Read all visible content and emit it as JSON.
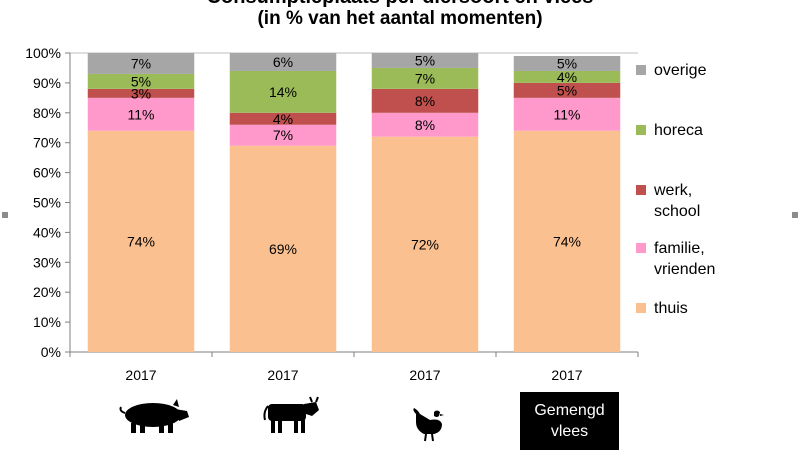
{
  "title_line1": "Consumptieplaats per diersoort en vlees",
  "title_line2": "(in % van het aantal momenten)",
  "mixed_label_line1": "Gemengd",
  "mixed_label_line2": "vlees",
  "icons": [
    "pig-icon",
    "cow-icon",
    "chicken-icon"
  ],
  "chart_data": {
    "type": "bar",
    "stacked": true,
    "categories": [
      "2017",
      "2017",
      "2017",
      "2017"
    ],
    "ylim": [
      0,
      100
    ],
    "yticks": [
      "0%",
      "10%",
      "20%",
      "30%",
      "40%",
      "50%",
      "60%",
      "70%",
      "80%",
      "90%",
      "100%"
    ],
    "legend_position": "right",
    "series": [
      {
        "name": "thuis",
        "color": "#FAC090",
        "values": [
          74,
          69,
          72,
          74
        ],
        "labels": [
          "74%",
          "69%",
          "72%",
          "74%"
        ]
      },
      {
        "name": "familie, vrienden",
        "color": "#FF99CC",
        "values": [
          11,
          7,
          8,
          11
        ],
        "labels": [
          "11%",
          "7%",
          "8%",
          "11%"
        ]
      },
      {
        "name": "werk, school",
        "color": "#C0504D",
        "values": [
          3,
          4,
          8,
          5
        ],
        "labels": [
          "3%",
          "4%",
          "8%",
          "5%"
        ]
      },
      {
        "name": "horeca",
        "color": "#9BBB59",
        "values": [
          5,
          14,
          7,
          4
        ],
        "labels": [
          "5%",
          "14%",
          "7%",
          "4%"
        ]
      },
      {
        "name": "overige",
        "color": "#A6A6A6",
        "values": [
          7,
          6,
          5,
          5
        ],
        "labels": [
          "7%",
          "6%",
          "5%",
          "5%"
        ]
      }
    ]
  }
}
